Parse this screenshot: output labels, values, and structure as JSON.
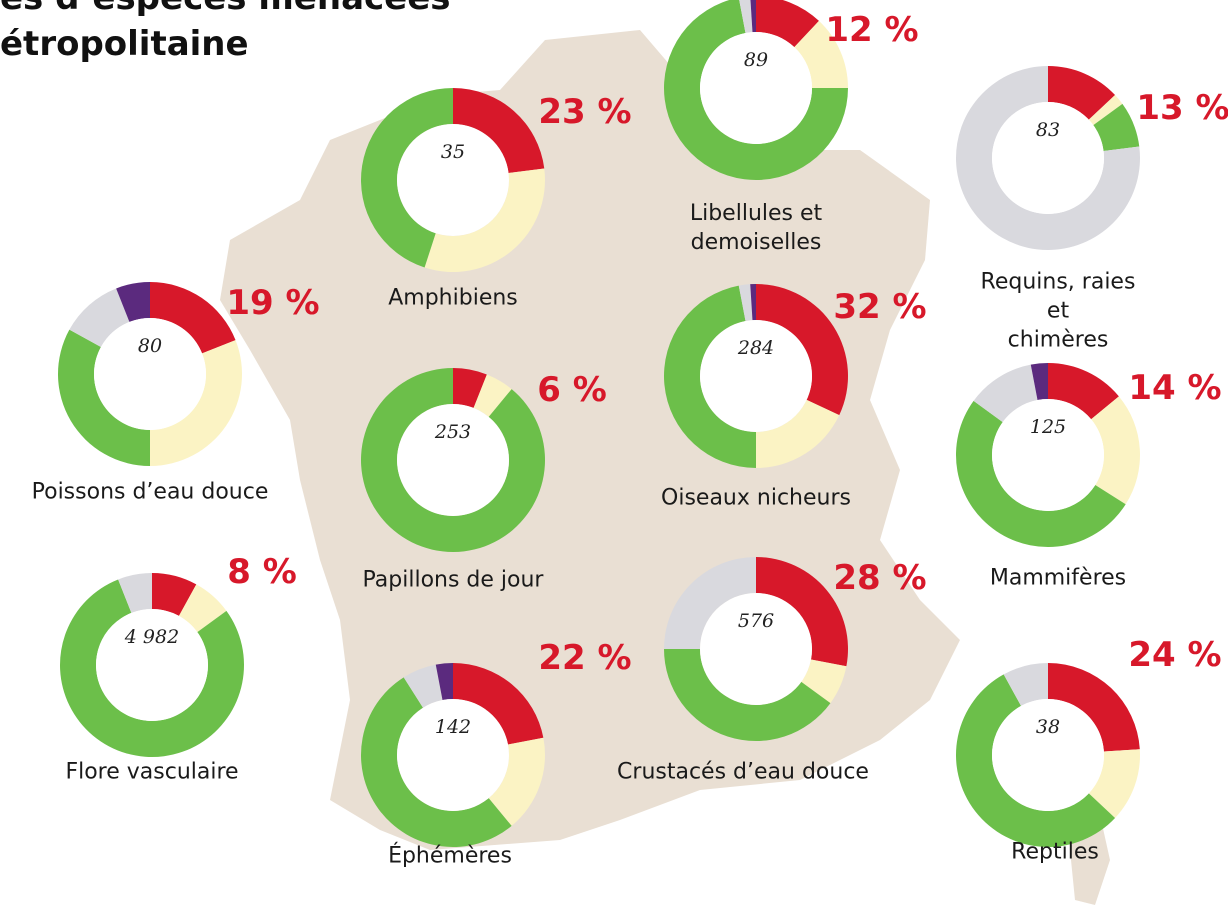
{
  "title_lines": [
    "es d’espèces menacées",
    "étropolitaine"
  ],
  "chart_data": [
    {
      "type": "donut",
      "title": "Amphibiens",
      "center_label": "35",
      "values": [
        23,
        32,
        45
      ],
      "value_labels": [
        "23 %",
        null,
        null
      ],
      "colors": [
        "#d7182a",
        "#fbf3c4",
        "#6cbf4a"
      ]
    },
    {
      "type": "donut",
      "title": "Libellules et\ndemoiselles",
      "center_label": "89",
      "values": [
        12,
        13,
        72,
        2,
        1
      ],
      "value_labels": [
        "12 %",
        null,
        null,
        null,
        null
      ],
      "colors": [
        "#d7182a",
        "#fbf3c4",
        "#6cbf4a",
        "#d9d9de",
        "#5b2a7e"
      ]
    },
    {
      "type": "donut",
      "title": "Requins, raies et\nchimères",
      "center_label": "83",
      "values": [
        13,
        2,
        8,
        77
      ],
      "value_labels": [
        "13 %",
        null,
        null,
        null
      ],
      "colors": [
        "#d7182a",
        "#fbf3c4",
        "#6cbf4a",
        "#d9d9de"
      ]
    },
    {
      "type": "donut",
      "title": "Poissons d’eau douce",
      "center_label": "80",
      "values": [
        19,
        31,
        33,
        11,
        6
      ],
      "value_labels": [
        "19 %",
        null,
        null,
        null,
        null
      ],
      "colors": [
        "#d7182a",
        "#fbf3c4",
        "#6cbf4a",
        "#d9d9de",
        "#5b2a7e"
      ]
    },
    {
      "type": "donut",
      "title": "Papillons de jour",
      "center_label": "253",
      "values": [
        6,
        5,
        89
      ],
      "value_labels": [
        "6 %",
        null,
        null
      ],
      "colors": [
        "#d7182a",
        "#fbf3c4",
        "#6cbf4a"
      ]
    },
    {
      "type": "donut",
      "title": "Oiseaux nicheurs",
      "center_label": "284",
      "values": [
        32,
        18,
        47,
        2,
        1
      ],
      "value_labels": [
        "32 %",
        null,
        null,
        null,
        null
      ],
      "colors": [
        "#d7182a",
        "#fbf3c4",
        "#6cbf4a",
        "#d9d9de",
        "#5b2a7e"
      ]
    },
    {
      "type": "donut",
      "title": "Mammifères",
      "center_label": "125",
      "values": [
        14,
        20,
        51,
        12,
        3
      ],
      "value_labels": [
        "14 %",
        null,
        null,
        null,
        null
      ],
      "colors": [
        "#d7182a",
        "#fbf3c4",
        "#6cbf4a",
        "#d9d9de",
        "#5b2a7e"
      ]
    },
    {
      "type": "donut",
      "title": "Flore vasculaire",
      "center_label": "4 982",
      "values": [
        8,
        7,
        79,
        6
      ],
      "value_labels": [
        "8 %",
        null,
        null,
        null
      ],
      "colors": [
        "#d7182a",
        "#fbf3c4",
        "#6cbf4a",
        "#d9d9de"
      ]
    },
    {
      "type": "donut",
      "title": "Éphémères",
      "center_label": "142",
      "values": [
        22,
        17,
        52,
        6,
        3
      ],
      "value_labels": [
        "22 %",
        null,
        null,
        null,
        null
      ],
      "colors": [
        "#d7182a",
        "#fbf3c4",
        "#6cbf4a",
        "#d9d9de",
        "#5b2a7e"
      ]
    },
    {
      "type": "donut",
      "title": "Crustacés d’eau douce",
      "center_label": "576",
      "values": [
        28,
        7,
        40,
        25
      ],
      "value_labels": [
        "28 %",
        null,
        null,
        null
      ],
      "colors": [
        "#d7182a",
        "#fbf3c4",
        "#6cbf4a",
        "#d9d9de"
      ]
    },
    {
      "type": "donut",
      "title": "Reptiles",
      "center_label": "38",
      "values": [
        24,
        13,
        55,
        8
      ],
      "value_labels": [
        "24 %",
        null,
        null,
        null
      ],
      "colors": [
        "#d7182a",
        "#fbf3c4",
        "#6cbf4a",
        "#d9d9de"
      ]
    }
  ]
}
